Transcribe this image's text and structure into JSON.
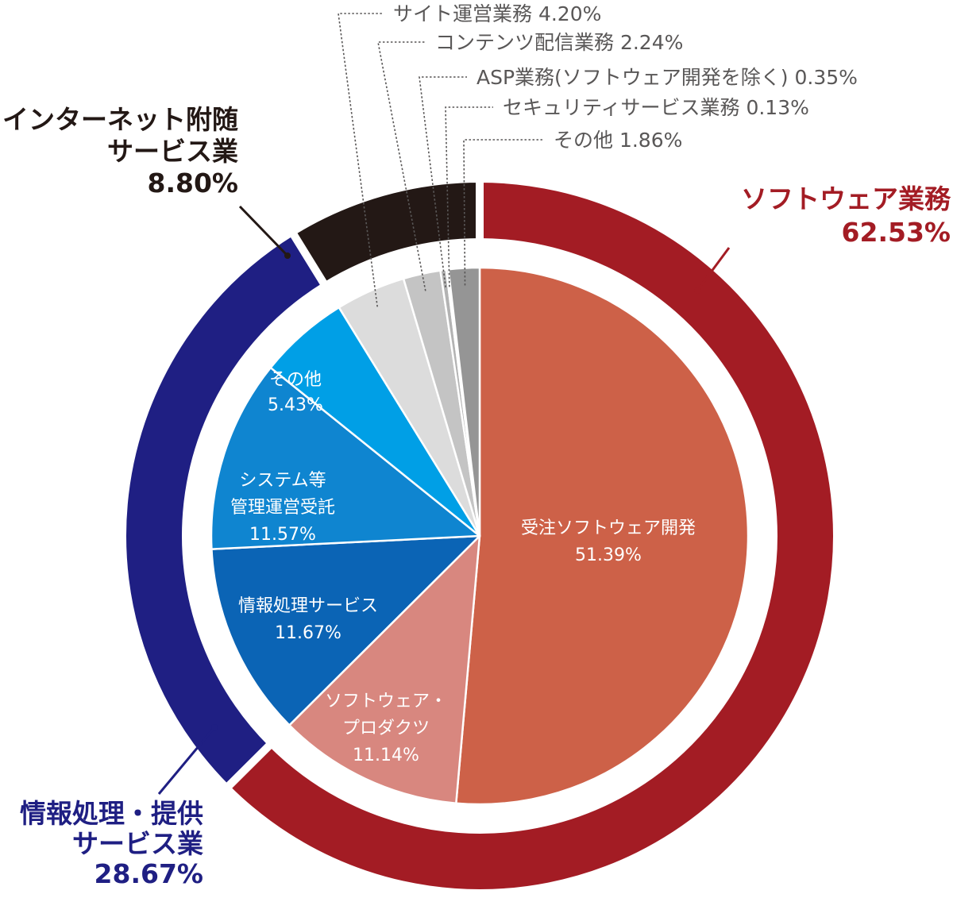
{
  "chart_data": {
    "type": "pie",
    "title": "",
    "outer_ring": {
      "slices": [
        {
          "name": "ソフトウェア業務",
          "value": 62.53,
          "label": "62.53%",
          "color": "#a31c24"
        },
        {
          "name": "情報処理・提供サービス業",
          "value": 28.67,
          "label": "28.67%",
          "color": "#1f1f83"
        },
        {
          "name": "インターネット附随サービス業",
          "value": 8.8,
          "label": "8.80%",
          "color": "#231815"
        }
      ]
    },
    "inner_pie": {
      "slices": [
        {
          "name": "受注ソフトウェア開発",
          "value": 51.39,
          "label": "51.39%",
          "color": "#cd6148",
          "text_color": "#ffffff"
        },
        {
          "name": "ソフトウェア・プロダクツ",
          "value": 11.14,
          "label": "11.14%",
          "color": "#d8877f",
          "text_color": "#ffffff"
        },
        {
          "name": "情報処理サービス",
          "value": 11.67,
          "label": "11.67%",
          "color": "#0b64b5",
          "text_color": "#ffffff"
        },
        {
          "name": "システム等管理運営受託",
          "value": 11.57,
          "label": "11.57%",
          "color": "#0f85d0",
          "text_color": "#ffffff"
        },
        {
          "name": "その他",
          "value": 5.43,
          "label": "5.43%",
          "color": "#009fe6",
          "text_color": "#ffffff"
        },
        {
          "name": "サイト運営業務",
          "value": 4.2,
          "label": "4.20%",
          "color": "#dcdcdc"
        },
        {
          "name": "コンテンツ配信業務",
          "value": 2.24,
          "label": "2.24%",
          "color": "#c4c4c4"
        },
        {
          "name": "ASP業務(ソフトウェア開発を除く)",
          "value": 0.35,
          "label": "0.35%",
          "color": "#b3b3b3"
        },
        {
          "name": "セキュリティサービス業務",
          "value": 0.13,
          "label": "0.13%",
          "color": "#a5a5a5"
        },
        {
          "name": "その他",
          "value": 1.86,
          "label": "1.86%",
          "color": "#959595"
        }
      ]
    }
  },
  "labels": {
    "outer": [
      {
        "lines": [
          "ソフトウェア業務",
          "62.53%"
        ],
        "color": "#a31c24"
      },
      {
        "lines": [
          "情報処理・提供",
          "サービス業",
          "28.67%"
        ],
        "color": "#1f1f83"
      },
      {
        "lines": [
          "インターネット附随",
          "サービス業",
          "8.80%"
        ],
        "color": "#231815"
      }
    ],
    "inner": [
      {
        "lines": [
          "受注ソフトウェア開発",
          "51.39%"
        ]
      },
      {
        "lines": [
          "ソフトウェア・",
          "プロダクツ",
          "11.14%"
        ]
      },
      {
        "lines": [
          "情報処理サービス",
          "11.67%"
        ]
      },
      {
        "lines": [
          "システム等",
          "管理運営受託",
          "11.57%"
        ]
      },
      {
        "lines": [
          "その他",
          "5.43%"
        ]
      }
    ],
    "callouts": [
      "サイト運営業務  4.20%",
      "コンテンツ配信業務  2.24%",
      "ASP業務(ソフトウェア開発を除く)  0.35%",
      "セキュリティサービス業務  0.13%",
      "その他  1.86%"
    ],
    "callout_color": "#595757"
  }
}
